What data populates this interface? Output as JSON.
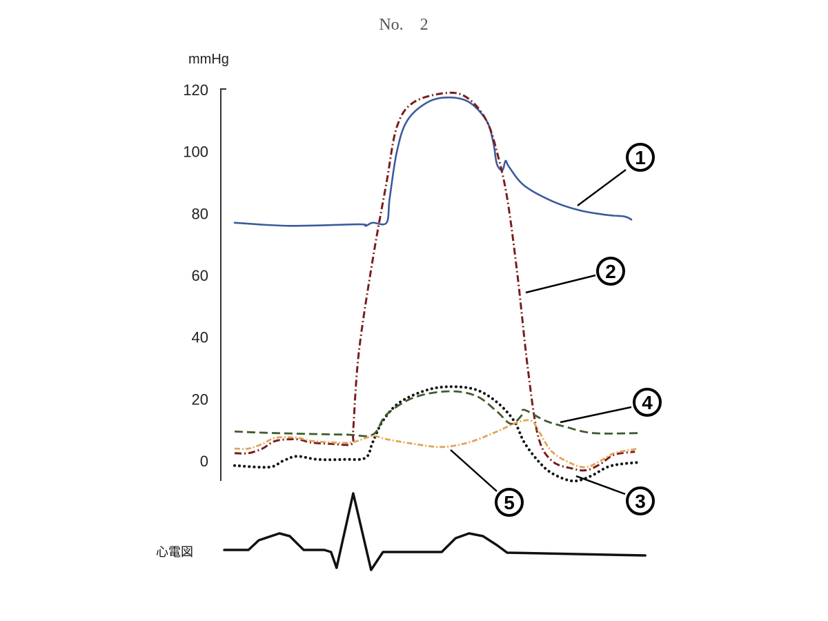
{
  "chart_data": {
    "type": "line",
    "title": "No.　2",
    "ylabel": "mmHg",
    "xlabel": "",
    "ylim": [
      -6,
      120
    ],
    "xlim": [
      0,
      102
    ],
    "yticks": [
      0,
      20,
      40,
      60,
      80,
      100,
      120
    ],
    "ytick_labels": [
      "0",
      "20",
      "40",
      "60",
      "80",
      "100",
      "120"
    ],
    "grid": false,
    "series": [
      {
        "name": "1",
        "label": "①",
        "color": "#3b5a9c",
        "style": "solid",
        "x": [
          0,
          13.9,
          31.3,
          33,
          34.8,
          38.3,
          39.1,
          40.9,
          43.5,
          48.7,
          53.9,
          59.1,
          63.5,
          65.2,
          66.1,
          67.5,
          68.3,
          69.2,
          73,
          80,
          87,
          93.9,
          98.3,
          100
        ],
        "y": [
          77,
          76,
          76.5,
          76,
          77,
          77,
          85,
          100,
          110,
          116,
          117.5,
          116,
          110,
          103,
          96,
          94,
          97,
          95,
          89,
          84,
          81,
          79.5,
          79,
          78
        ]
      },
      {
        "name": "2",
        "label": "②",
        "color": "#7a1c1c",
        "style": "dash-dot",
        "x": [
          0,
          3.5,
          7,
          10.4,
          15.7,
          19.1,
          24.3,
          29.6,
          29.9,
          31.3,
          34.8,
          38.3,
          40.9,
          45.2,
          53.9,
          59.1,
          63.5,
          66.1,
          68.7,
          71.3,
          73.9,
          76.5,
          80,
          85.2,
          88.7,
          92.2,
          95.7,
          100.9
        ],
        "y": [
          2.5,
          2.5,
          4,
          6.5,
          7,
          6,
          5.5,
          5.5,
          10,
          35,
          65,
          90,
          108,
          116,
          119,
          117,
          110,
          100,
          85,
          60,
          30,
          8,
          0,
          -2.5,
          -3,
          -1,
          2,
          3
        ]
      },
      {
        "name": "3",
        "label": "③",
        "color": "#111111",
        "style": "dotted",
        "x": [
          0,
          8.7,
          12.2,
          15.7,
          20.9,
          27.8,
          33,
          34.8,
          37.4,
          41.7,
          48.7,
          54.8,
          60.9,
          66.1,
          70.4,
          73,
          76.5,
          80,
          85.2,
          89.6,
          93.9,
          97.4,
          101.7
        ],
        "y": [
          -1.5,
          -2,
          0,
          1.5,
          0.5,
          0.5,
          1,
          6,
          13,
          19,
          23,
          24,
          23,
          19,
          13,
          6,
          0,
          -4,
          -6.5,
          -5,
          -2,
          -1,
          -0.5
        ]
      },
      {
        "name": "4",
        "label": "④",
        "color": "#3f5c2c",
        "style": "dashed",
        "x": [
          0,
          10.4,
          27.8,
          34.8,
          38.3,
          45.2,
          53.9,
          60.9,
          66.1,
          69.6,
          72.2,
          73,
          78.3,
          83.5,
          90.4,
          101.7
        ],
        "y": [
          9.5,
          9,
          8.5,
          8.5,
          15,
          20.5,
          22.5,
          21,
          16,
          12,
          14.5,
          16.5,
          13,
          11,
          9,
          9
        ]
      },
      {
        "name": "5",
        "label": "⑤",
        "color": "#e3a455",
        "style": "dash-dot-light",
        "x": [
          0,
          3.5,
          7,
          10.4,
          15.7,
          19.1,
          24.3,
          29.6,
          34.8,
          38.3,
          45.2,
          52.2,
          59.1,
          66.1,
          71.3,
          74.8,
          76.5,
          80,
          85.2,
          88.7,
          92.2,
          95.7,
          101.7
        ],
        "y": [
          4,
          4,
          5.5,
          7.5,
          7.5,
          6.5,
          6,
          6,
          8,
          7,
          5.5,
          4.5,
          6,
          9.5,
          12.5,
          13,
          10,
          3,
          -1,
          -2,
          0,
          2.5,
          4
        ]
      }
    ],
    "ecg": {
      "label": "心電図",
      "color": "#111111",
      "x": [
        -2.6,
        3.5,
        6.1,
        11.3,
        13.9,
        17.4,
        22.6,
        24.3,
        25.7,
        29.9,
        34.4,
        37.4,
        52.2,
        55.7,
        59.1,
        62.6,
        66.1,
        68.7,
        103.5
      ],
      "amplitude": [
        0,
        0,
        1.4,
        2.4,
        2,
        0,
        0,
        -0.3,
        -2.6,
        8.2,
        -2.9,
        -0.3,
        -0.3,
        1.7,
        2.4,
        2,
        0.7,
        -0.4,
        -0.8
      ]
    }
  }
}
